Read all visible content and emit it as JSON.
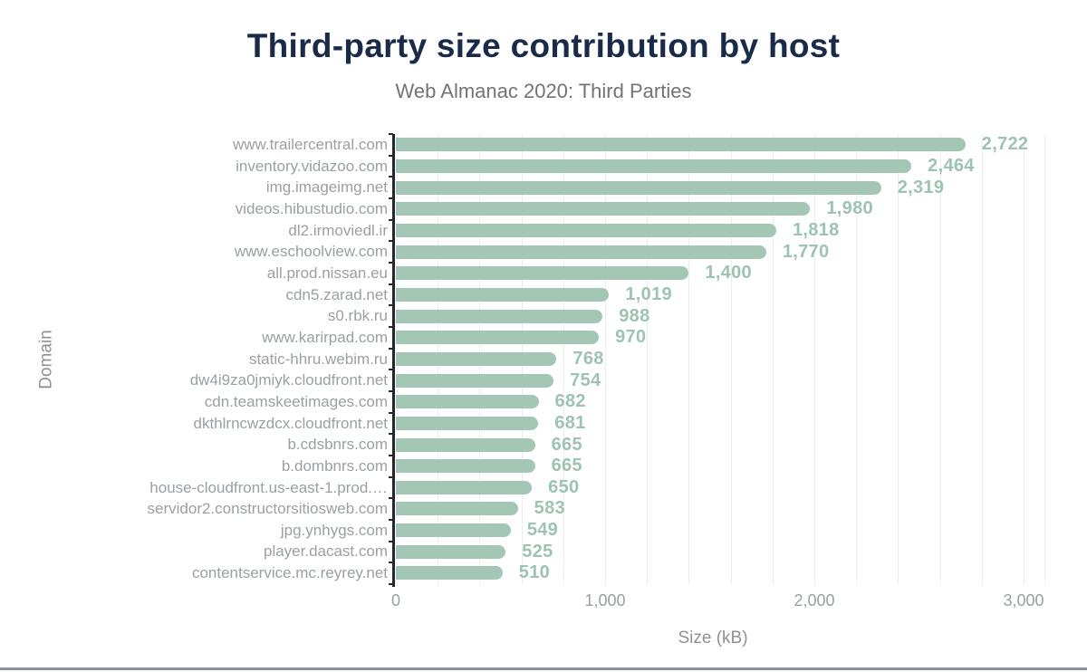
{
  "page": {
    "title": "Third-party size contribution by host",
    "subtitle": "Web Almanac 2020: Third Parties"
  },
  "chart_data": {
    "type": "bar",
    "orientation": "horizontal",
    "title": "Third-party size contribution by host",
    "subtitle": "Web Almanac 2020: Third Parties",
    "xlabel": "Size (kB)",
    "ylabel": "Domain",
    "xmax": 3100,
    "grid_step": 200,
    "grid": "on",
    "x_ticks": [
      {
        "value": 0,
        "label": "0"
      },
      {
        "value": 1000,
        "label": "1,000"
      },
      {
        "value": 2000,
        "label": "2,000"
      },
      {
        "value": 3000,
        "label": "3,000"
      }
    ],
    "categories": [
      "www.trailercentral.com",
      "inventory.vidazoo.com",
      "img.imageimg.net",
      "videos.hibustudio.com",
      "dl2.irmoviedl.ir",
      "www.eschoolview.com",
      "all.prod.nissan.eu",
      "cdn5.zarad.net",
      "s0.rbk.ru",
      "www.karirpad.com",
      "static-hhru.webim.ru",
      "dw4i9za0jmiyk.cloudfront.net",
      "cdn.teamskeetimages.com",
      "dkthlrncwzdcx.cloudfront.net",
      "b.cdsbnrs.com",
      "b.dombnrs.com",
      "house-cloudfront.us-east-1.prod.…",
      "servidor2.constructorsitiosweb.com",
      "jpg.ynhygs.com",
      "player.dacast.com",
      "contentservice.mc.reyrey.net"
    ],
    "values": [
      2722,
      2464,
      2319,
      1980,
      1818,
      1770,
      1400,
      1019,
      988,
      970,
      768,
      754,
      682,
      681,
      665,
      665,
      650,
      583,
      549,
      525,
      510
    ],
    "value_labels": [
      "2,722",
      "2,464",
      "2,319",
      "1,980",
      "1,818",
      "1,770",
      "1,400",
      "1,019",
      "988",
      "970",
      "768",
      "754",
      "682",
      "681",
      "665",
      "665",
      "650",
      "583",
      "549",
      "525",
      "510"
    ],
    "colors": {
      "bar": "#a4c7b5",
      "value_label": "#9dc3b1",
      "title": "#1a2b4a",
      "subtitle": "#737373",
      "axis_line": "#24282e",
      "tick_label": "#9aa0a4",
      "axis_title": "#8d9196",
      "grid_line": "#ededed",
      "footer_bar": "#8e939b"
    }
  }
}
